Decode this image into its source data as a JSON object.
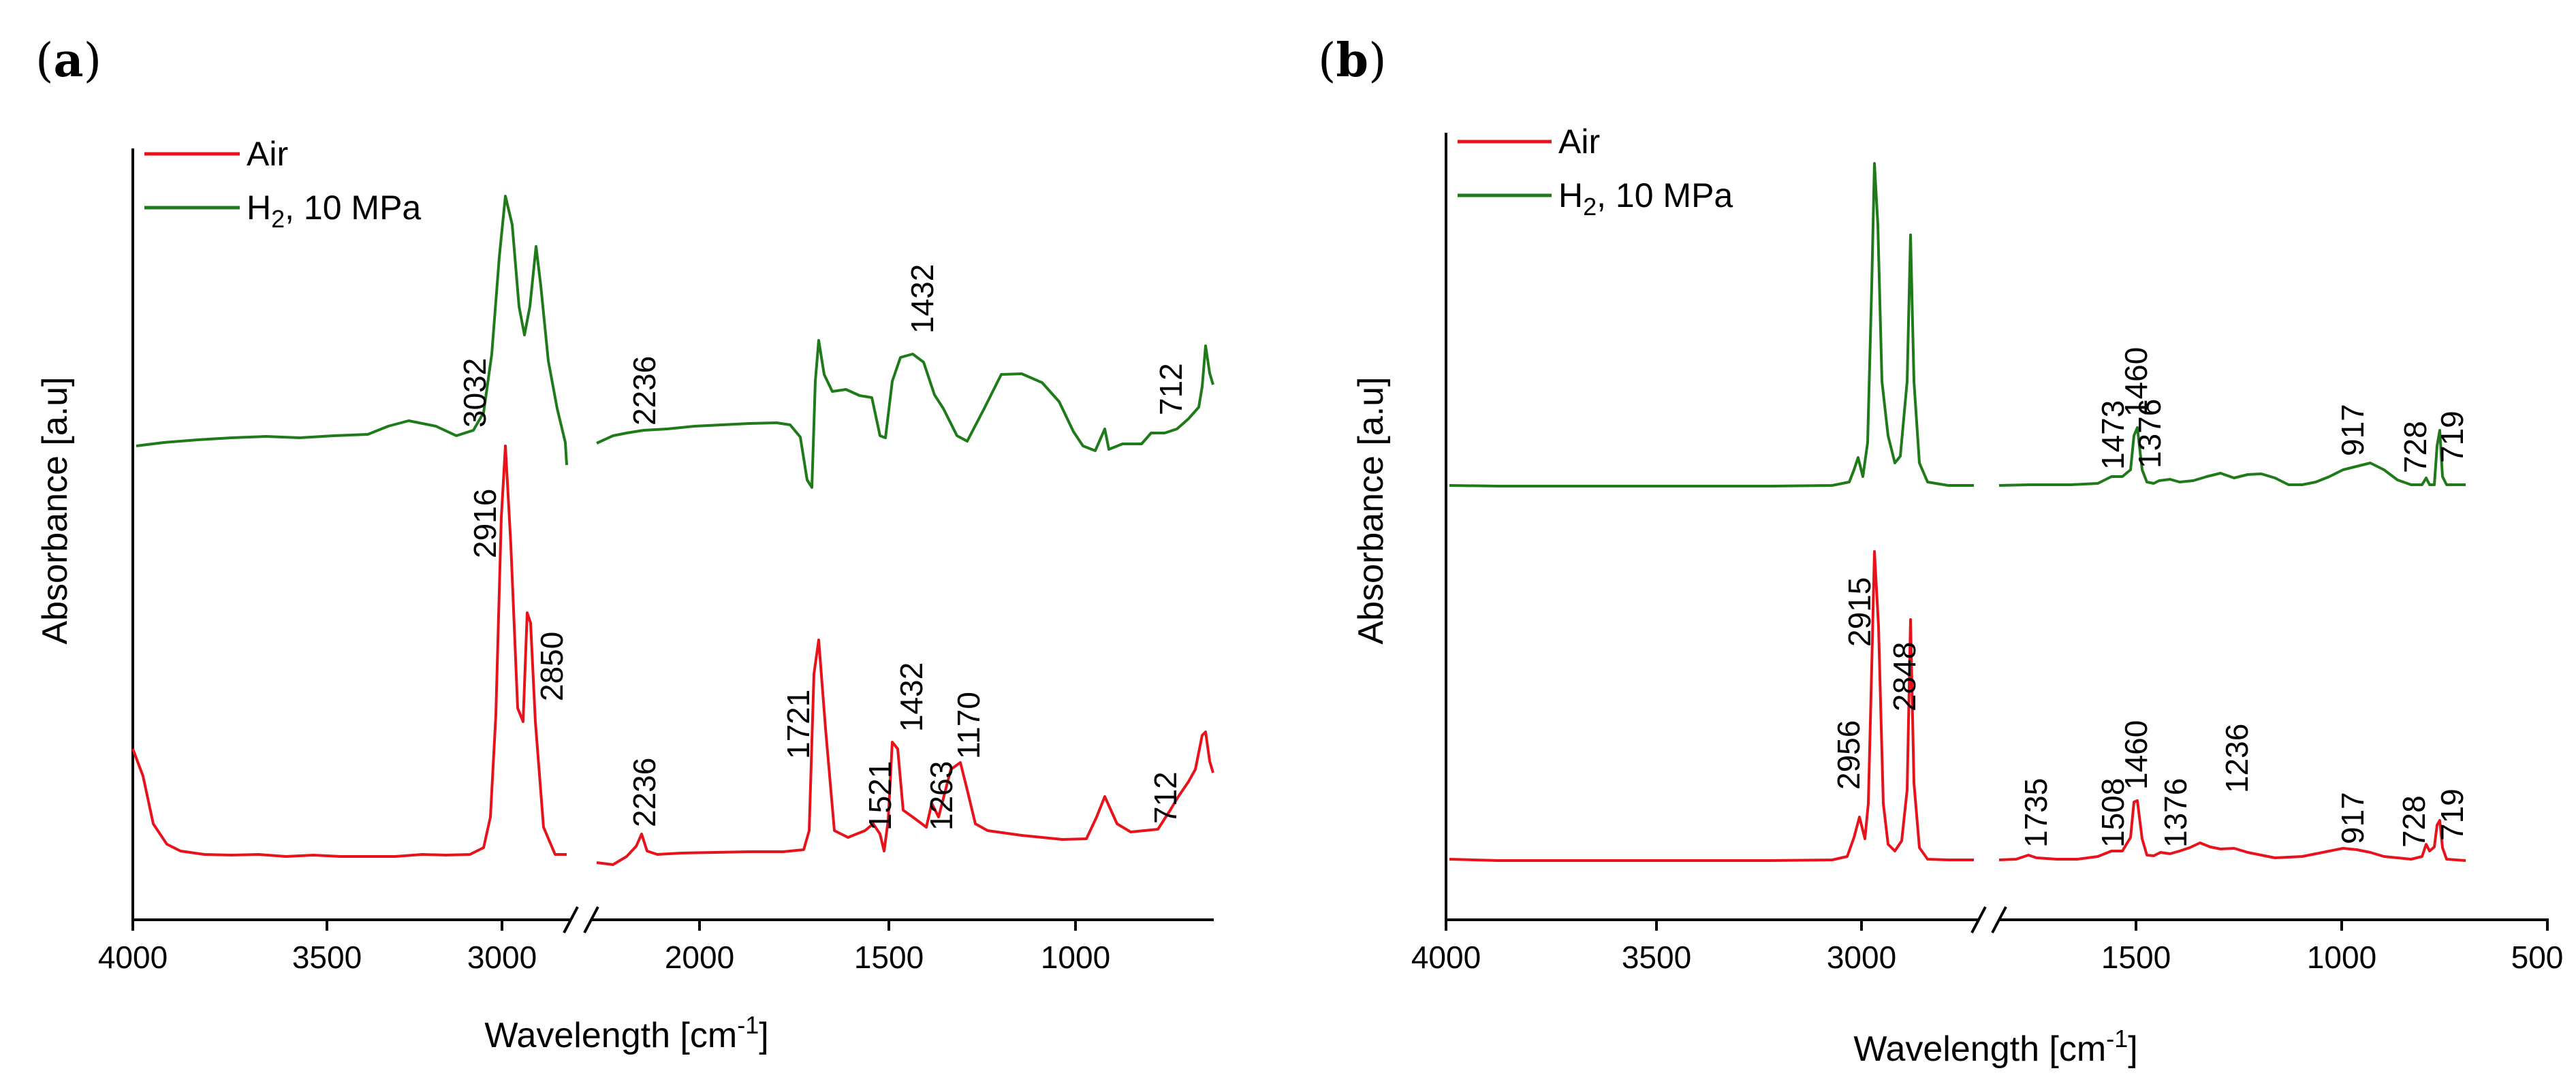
{
  "chart_data": [
    {
      "panel_label": "a",
      "type": "line",
      "title": "",
      "xlabel": "Wavelength [cm",
      "xlabel_sup": "-1",
      "xlabel_end": "]",
      "ylabel": "Absorbance [a.u]",
      "x_reversed": true,
      "x_break": "between 2750 and 2500 cm-1",
      "x_ticks": [
        "4000",
        "3500",
        "3000",
        "2000",
        "1500",
        "1000"
      ],
      "legend": {
        "position": "top-left",
        "entries": [
          {
            "name": "Air",
            "color": "#e8121b"
          },
          {
            "name_main": "H",
            "name_sub": "2",
            "name_rest": ", 10 MPa",
            "color": "#1f7a1a"
          }
        ]
      },
      "series": [
        {
          "name": "Air",
          "color": "#e8121b",
          "peaks": [
            {
              "x": 2916,
              "label": "2916"
            },
            {
              "x": 2850,
              "label": "2850"
            },
            {
              "x": 2236,
              "label": "2236"
            },
            {
              "x": 1721,
              "label": "1721"
            },
            {
              "x": 1521,
              "label": "1521"
            },
            {
              "x": 1432,
              "label": "1432"
            },
            {
              "x": 1263,
              "label": "1263"
            },
            {
              "x": 1170,
              "label": "1170"
            },
            {
              "x": 712,
              "label": "712"
            }
          ]
        },
        {
          "name": "H2, 10 MPa",
          "color": "#1f7a1a",
          "peaks": [
            {
              "x": 3032,
              "label": "3032"
            },
            {
              "x": 2236,
              "label": "2236"
            },
            {
              "x": 1432,
              "label": "1432"
            },
            {
              "x": 712,
              "label": "712"
            }
          ]
        }
      ]
    },
    {
      "panel_label": "b",
      "type": "line",
      "title": "",
      "xlabel": "Wavelength [cm",
      "xlabel_sup": "-1",
      "xlabel_end": "]",
      "ylabel": "Absorbance [a.u]",
      "x_reversed": true,
      "x_break": "between 2700 and 1800 cm-1",
      "x_ticks": [
        "4000",
        "3500",
        "3000",
        "1500",
        "1000",
        "500"
      ],
      "legend": {
        "position": "top-left",
        "entries": [
          {
            "name": "Air",
            "color": "#e8121b"
          },
          {
            "name_main": "H",
            "name_sub": "2",
            "name_rest": ", 10 MPa",
            "color": "#1f7a1a"
          }
        ]
      },
      "series": [
        {
          "name": "Air",
          "color": "#e8121b",
          "peaks": [
            {
              "x": 2956,
              "label": "2956"
            },
            {
              "x": 2915,
              "label": "2915"
            },
            {
              "x": 2848,
              "label": "2848"
            },
            {
              "x": 1735,
              "label": "1735"
            },
            {
              "x": 1508,
              "label": "1508"
            },
            {
              "x": 1460,
              "label": "1460"
            },
            {
              "x": 1376,
              "label": "1376"
            },
            {
              "x": 1236,
              "label": "1236"
            },
            {
              "x": 917,
              "label": "917"
            },
            {
              "x": 728,
              "label": "728"
            },
            {
              "x": 719,
              "label": "719"
            }
          ]
        },
        {
          "name": "H2, 10 MPa",
          "color": "#1f7a1a",
          "peaks": [
            {
              "x": 1473,
              "label": "1473"
            },
            {
              "x": 1460,
              "label": "1460"
            },
            {
              "x": 1376,
              "label": "1376"
            },
            {
              "x": 917,
              "label": "917"
            },
            {
              "x": 728,
              "label": "728"
            },
            {
              "x": 719,
              "label": "719"
            }
          ]
        }
      ]
    }
  ]
}
